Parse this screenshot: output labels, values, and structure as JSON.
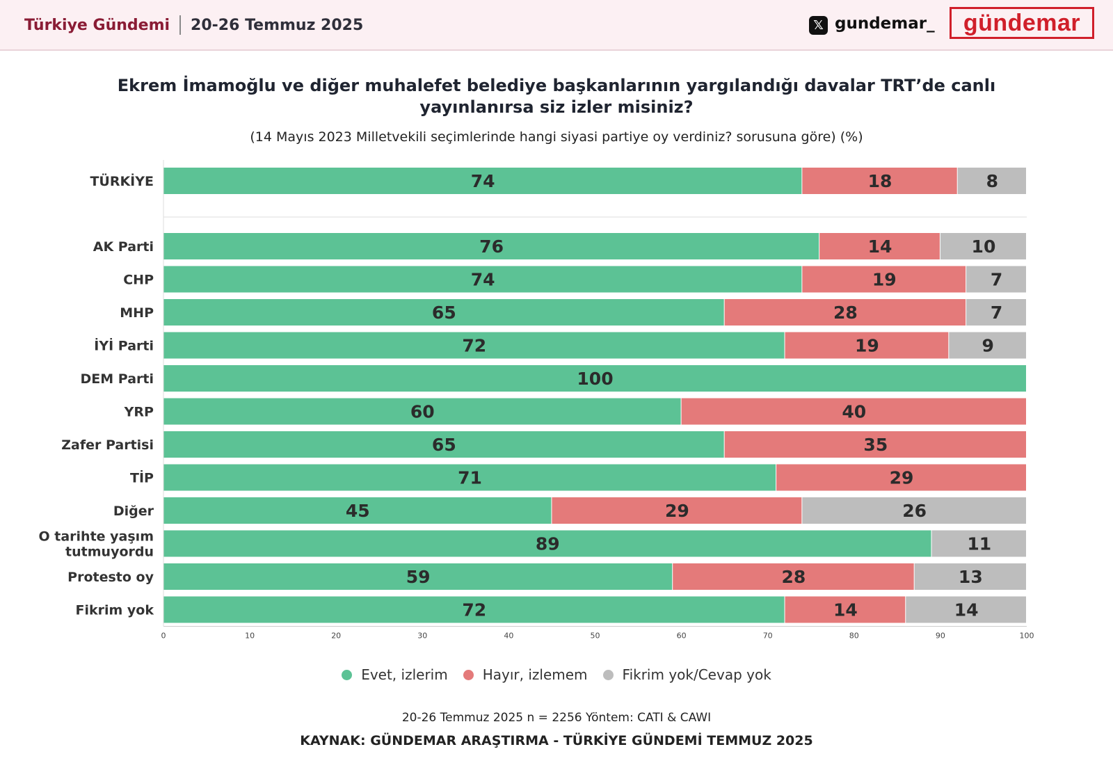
{
  "header": {
    "brand": "Türkiye Gündemi",
    "date_range": "20-26 Temmuz 2025",
    "social_icon": "x-icon",
    "social_handle": "gundemar_",
    "logo_text": "gündemar",
    "logo_color": "#d01f2a"
  },
  "footer": {
    "meta": "20-26 Temmuz 2025 n = 2256 Yöntem: CATI & CAWI",
    "source": "KAYNAK: GÜNDEMAR ARAŞTIRMA - TÜRKİYE GÜNDEMİ TEMMUZ 2025"
  },
  "chart_data": {
    "type": "bar",
    "orientation": "horizontal",
    "stacked": true,
    "title": "Ekrem İmamoğlu ve diğer muhalefet belediye başkanlarının yargılandığı davalar TRT’de canlı yayınlanırsa siz izler misiniz?",
    "subtitle": "(14 Mayıs 2023 Milletvekili seçimlerinde hangi siyasi partiye oy verdiniz? sorusuna göre) (%)",
    "xlim": [
      0,
      100
    ],
    "xticks": [
      0,
      10,
      20,
      30,
      40,
      50,
      60,
      70,
      80,
      90,
      100
    ],
    "categories": [
      "TÜRKİYE",
      "AK Parti",
      "CHP",
      "MHP",
      "İYİ Parti",
      "DEM Parti",
      "YRP",
      "Zafer Partisi",
      "TİP",
      "Diğer",
      "O tarihte yaşım tutmuyordu",
      "Protesto oy",
      "Fikrim yok"
    ],
    "series": [
      {
        "name": "Evet, izlerim",
        "color": "#5cc295",
        "values": [
          74,
          76,
          74,
          65,
          72,
          100,
          60,
          65,
          71,
          45,
          89,
          59,
          72
        ]
      },
      {
        "name": "Hayır, izlemem",
        "color": "#e47a7a",
        "values": [
          18,
          14,
          19,
          28,
          19,
          0,
          40,
          35,
          29,
          29,
          0,
          28,
          14
        ]
      },
      {
        "name": "Fikrim yok/Cevap yok",
        "color": "#bdbdbd",
        "values": [
          8,
          10,
          7,
          7,
          9,
          0,
          0,
          0,
          0,
          26,
          11,
          13,
          14
        ]
      }
    ],
    "legend_position": "bottom-center",
    "grid": false
  }
}
